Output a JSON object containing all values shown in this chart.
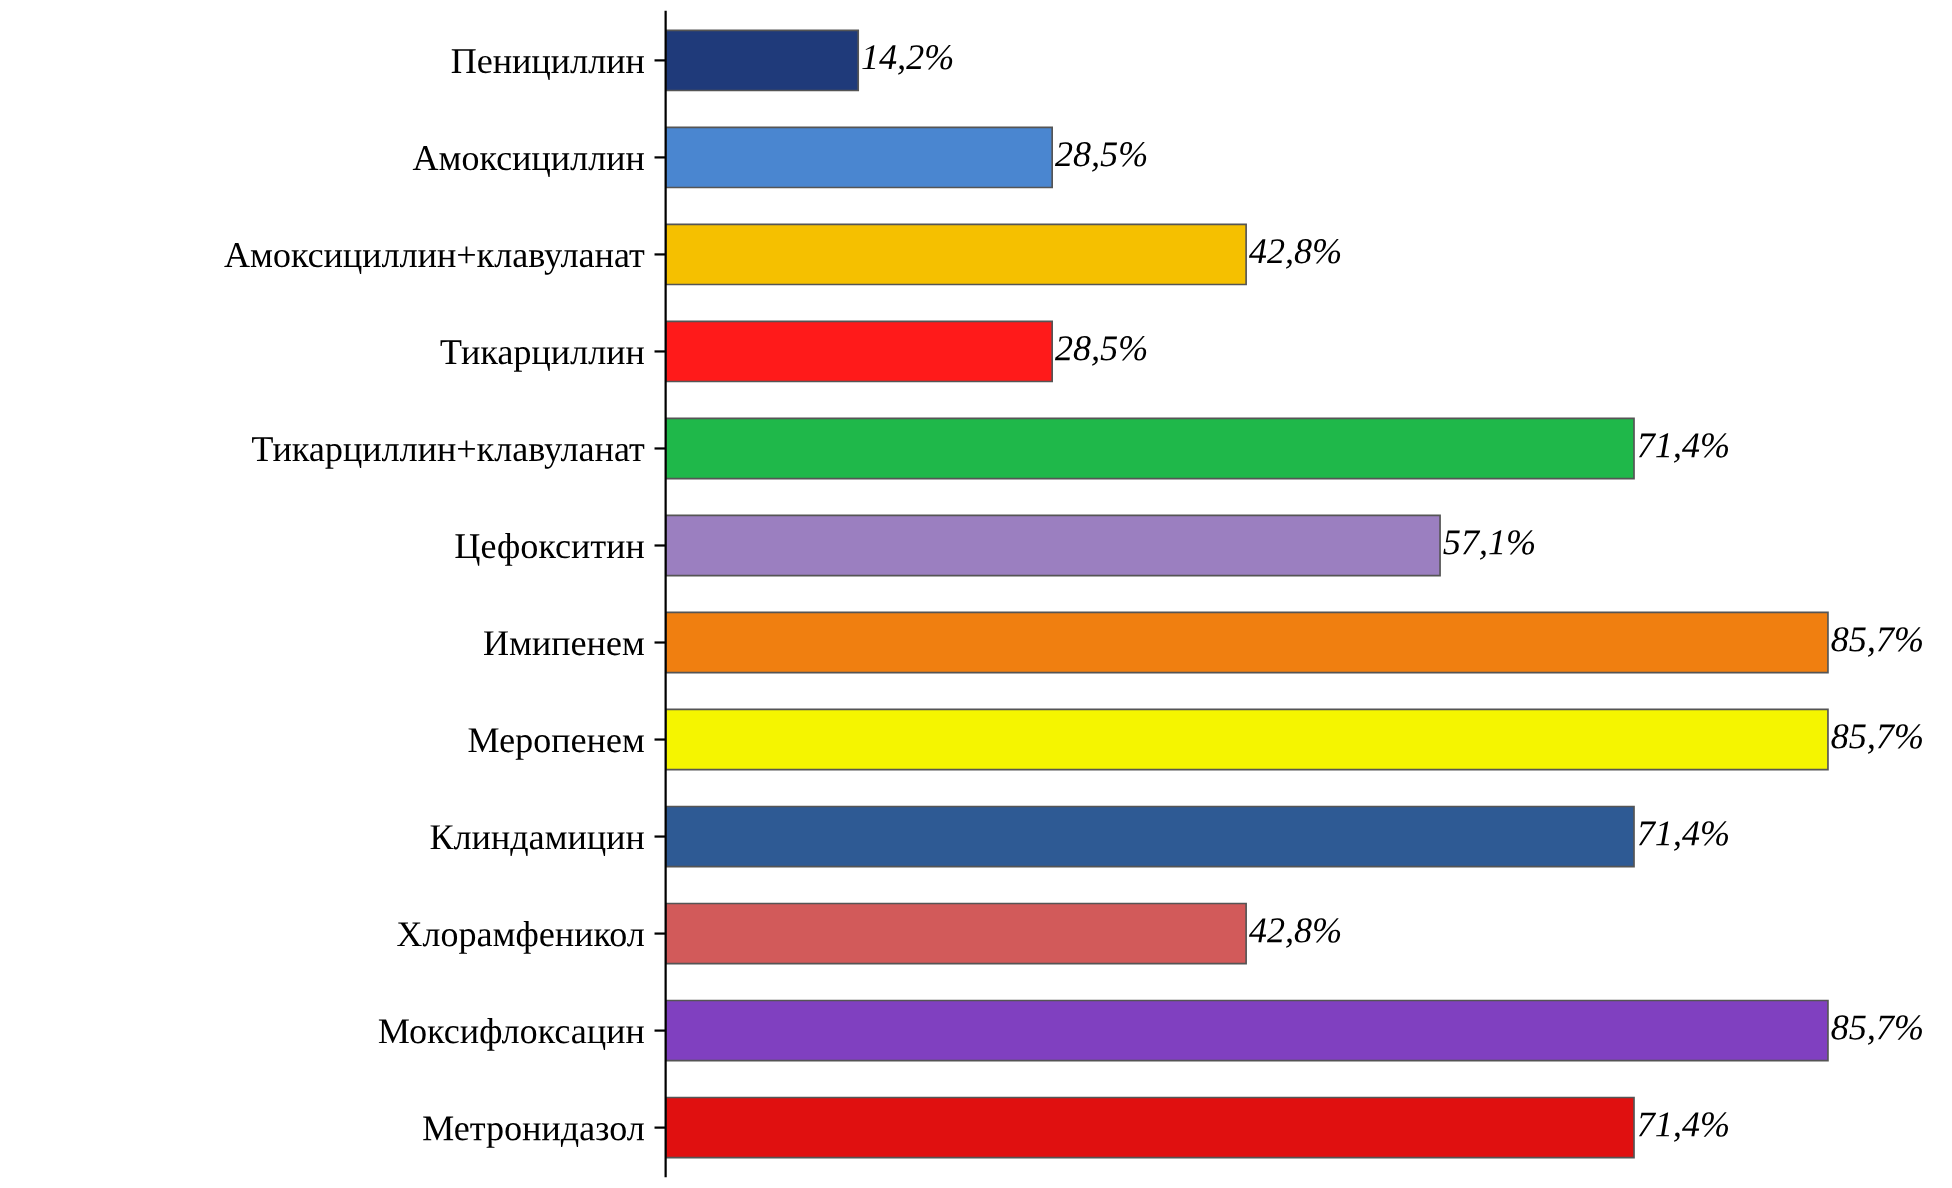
{
  "chart_data": {
    "type": "bar",
    "orientation": "horizontal",
    "data_labels": true,
    "grid": false,
    "legend": false,
    "tick_labels": "y",
    "categories": [
      "Пенициллин",
      "Амоксициллин",
      "Амоксициллин+клавуланат",
      "Тикарциллин",
      "Тикарциллин+клавуланат",
      "Цефокситин",
      "Имипенем",
      "Меропенем",
      "Клиндамицин",
      "Хлорамфеникол",
      "Моксифлоксацин",
      "Метронидазол"
    ],
    "values": [
      14.2,
      28.5,
      42.8,
      28.5,
      71.4,
      57.1,
      85.7,
      85.7,
      71.4,
      42.8,
      85.7,
      71.4
    ],
    "value_labels": [
      "14,2%",
      "28,5%",
      "42,8%",
      "28,5%",
      "71,4%",
      "57,1%",
      "85,7%",
      "85,7%",
      "71,4%",
      "42,8%",
      "85,7%",
      "71,4%"
    ],
    "colors": [
      "#1f3a7a",
      "#4a86d0",
      "#f5c000",
      "#ff1a1a",
      "#1fb84a",
      "#9b7fc0",
      "#f07f10",
      "#f5f500",
      "#2e5a94",
      "#d25a5a",
      "#8040c0",
      "#e01010"
    ]
  }
}
